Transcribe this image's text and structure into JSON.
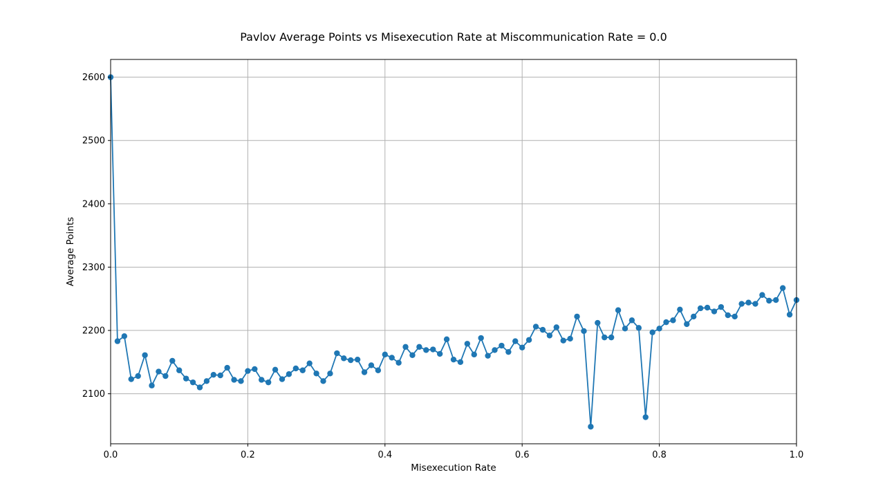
{
  "chart_data": {
    "type": "line",
    "title": "Pavlov Average Points vs Misexecution Rate at Miscommunication Rate = 0.0",
    "xlabel": "Misexecution Rate",
    "ylabel": "Average Points",
    "xlim": [
      0.0,
      1.0
    ],
    "ylim": [
      2021,
      2628
    ],
    "xticks": [
      "0.0",
      "0.2",
      "0.4",
      "0.6",
      "0.8",
      "1.0"
    ],
    "yticks": [
      "2100",
      "2200",
      "2300",
      "2400",
      "2500",
      "2600"
    ],
    "grid": true,
    "colors": {
      "series": "#1f77b4",
      "grid": "#b0b0b0"
    },
    "series": [
      {
        "x": [
          0.0,
          0.01,
          0.02,
          0.03,
          0.04,
          0.05,
          0.06,
          0.07,
          0.08,
          0.09,
          0.1,
          0.11,
          0.12,
          0.13,
          0.14,
          0.15,
          0.16,
          0.17,
          0.18,
          0.19,
          0.2,
          0.21,
          0.22,
          0.23,
          0.24,
          0.25,
          0.26,
          0.27,
          0.28,
          0.29,
          0.3,
          0.31,
          0.32,
          0.33,
          0.34,
          0.35,
          0.36,
          0.37,
          0.38,
          0.39,
          0.4,
          0.41,
          0.42,
          0.43,
          0.44,
          0.45,
          0.46,
          0.47,
          0.48,
          0.49,
          0.5,
          0.51,
          0.52,
          0.53,
          0.54,
          0.55,
          0.56,
          0.57,
          0.58,
          0.59,
          0.6,
          0.61,
          0.62,
          0.63,
          0.64,
          0.65,
          0.66,
          0.67,
          0.68,
          0.69,
          0.7,
          0.71,
          0.72,
          0.73,
          0.74,
          0.75,
          0.76,
          0.77,
          0.78,
          0.79,
          0.8,
          0.81,
          0.82,
          0.83,
          0.84,
          0.85,
          0.86,
          0.87,
          0.88,
          0.89,
          0.9,
          0.91,
          0.92,
          0.93,
          0.94,
          0.95,
          0.96,
          0.97,
          0.98,
          0.99,
          1.0
        ],
        "values": [
          2600,
          2183,
          2191,
          2123,
          2128,
          2161,
          2113,
          2135,
          2128,
          2152,
          2137,
          2124,
          2118,
          2110,
          2120,
          2130,
          2129,
          2141,
          2122,
          2120,
          2136,
          2139,
          2122,
          2118,
          2138,
          2123,
          2131,
          2140,
          2137,
          2148,
          2132,
          2120,
          2132,
          2164,
          2156,
          2153,
          2154,
          2134,
          2145,
          2137,
          2162,
          2157,
          2149,
          2174,
          2161,
          2174,
          2169,
          2170,
          2163,
          2186,
          2154,
          2150,
          2179,
          2162,
          2188,
          2160,
          2169,
          2176,
          2166,
          2183,
          2173,
          2185,
          2206,
          2201,
          2192,
          2205,
          2184,
          2187,
          2222,
          2199,
          2048,
          2212,
          2189,
          2189,
          2232,
          2203,
          2216,
          2204,
          2063,
          2197,
          2203,
          2213,
          2216,
          2233,
          2210,
          2222,
          2235,
          2236,
          2230,
          2237,
          2224,
          2222,
          2242,
          2244,
          2242,
          2256,
          2247,
          2248,
          2267,
          2225,
          2248
        ]
      }
    ]
  }
}
